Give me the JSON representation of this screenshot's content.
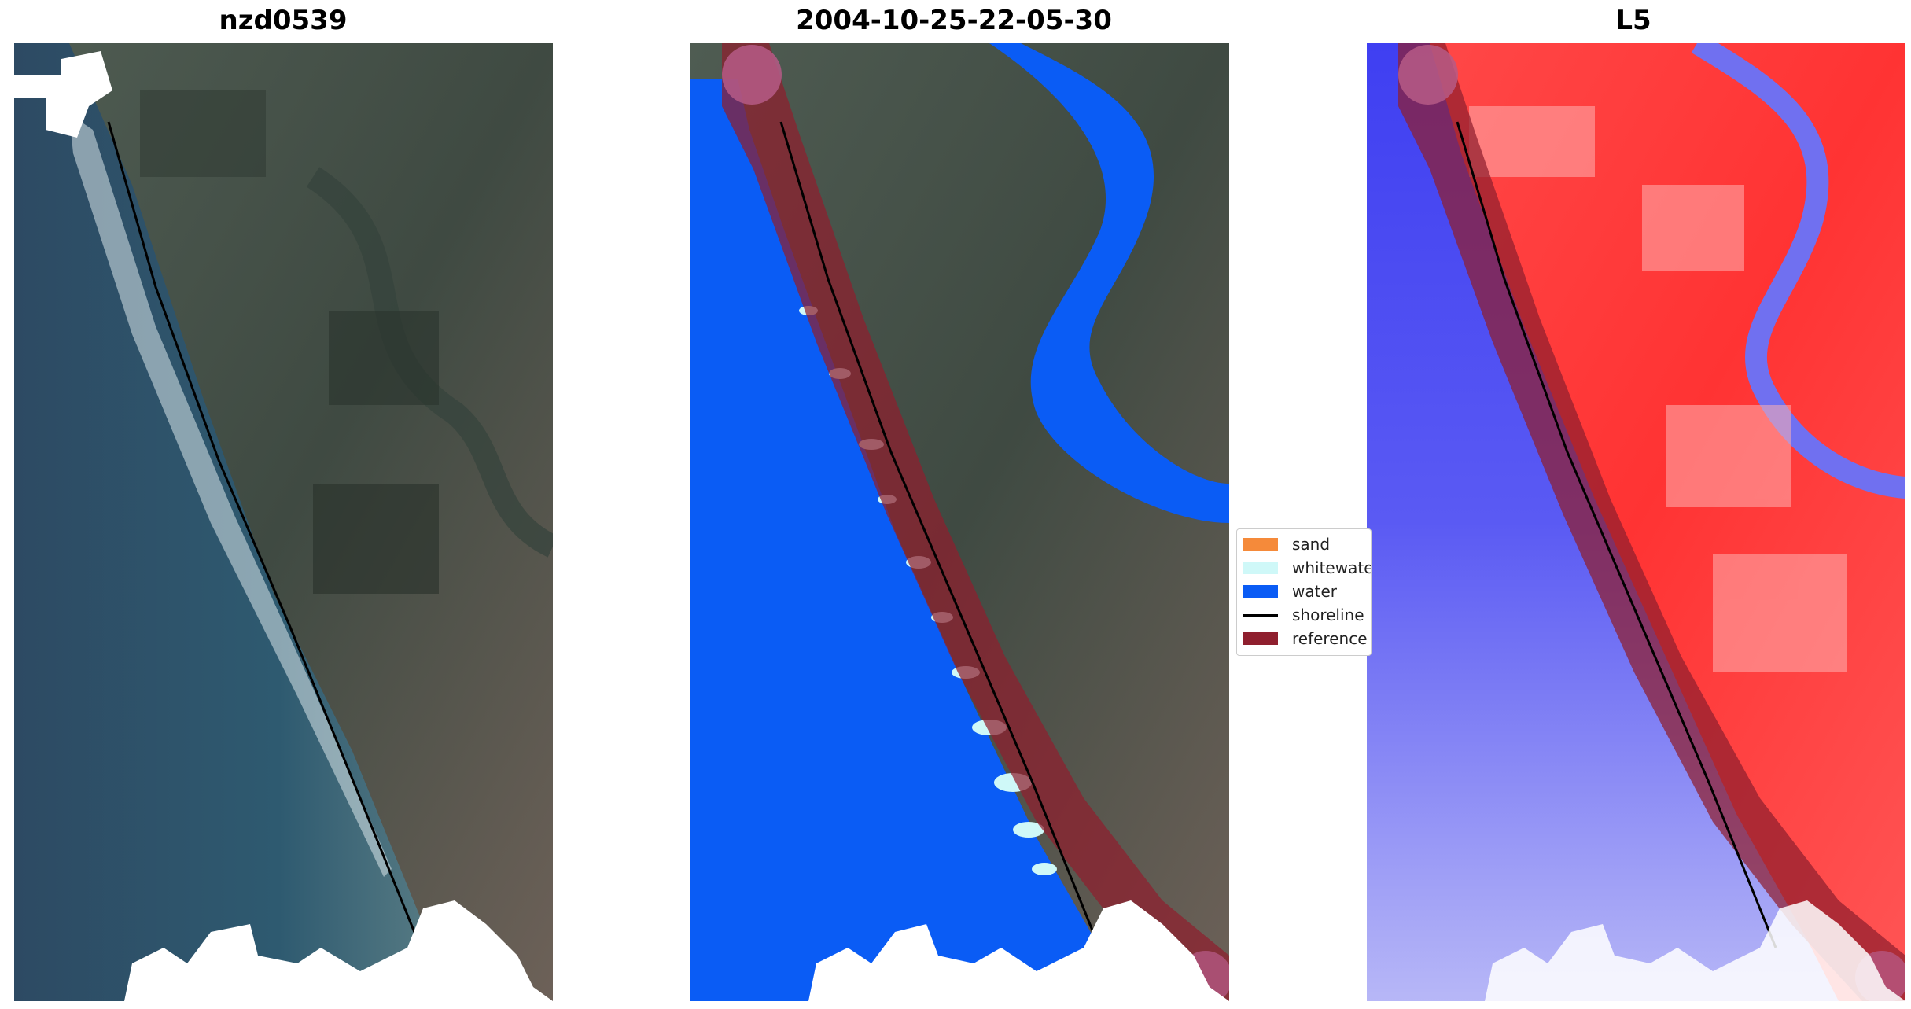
{
  "panels": [
    {
      "title": "nzd0539",
      "kind": "rgb"
    },
    {
      "title": "2004-10-25-22-05-30",
      "kind": "classified"
    },
    {
      "title": "L5",
      "kind": "index"
    }
  ],
  "legend": {
    "items": [
      {
        "label": "sand",
        "color": "#f58a3a",
        "type": "patch"
      },
      {
        "label": "whitewater",
        "color": "#cff8f8",
        "type": "patch"
      },
      {
        "label": "water",
        "color": "#0a5cf5",
        "type": "patch"
      },
      {
        "label": "shoreline",
        "color": "#000000",
        "type": "line"
      },
      {
        "label": "reference",
        "color": "#8f1f2e",
        "type": "patch"
      }
    ]
  },
  "colors": {
    "ocean": "#2a4f6b",
    "land": "#4b5a55",
    "water_class": "#0a5cf5",
    "whitewater": "#cff8f8",
    "reference_buffer": "#8f1f2e",
    "index_negative": "#3d3df5",
    "index_positive": "#f53d3d",
    "cloud": "#ffffff"
  }
}
